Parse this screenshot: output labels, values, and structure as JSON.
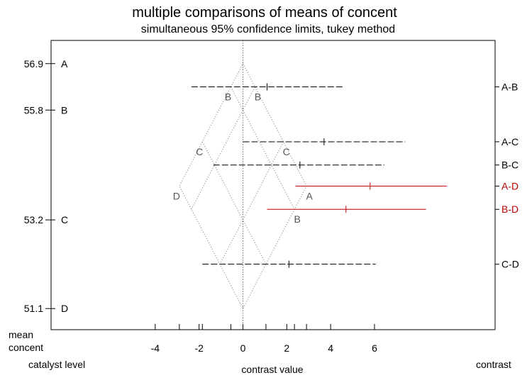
{
  "chart_data": {
    "type": "mean-mean-scatter",
    "title": "multiple comparisons of means of concent",
    "subtitle": "simultaneous 95% confidence limits, tukey method",
    "xlabel": "contrast value",
    "left_axis_title_1": "mean",
    "left_axis_title_2": "concent",
    "left_axis_label": "catalyst level",
    "right_axis_label": "contrast",
    "xlim": [
      -8.75,
      11.5
    ],
    "x_ticks": [
      -4,
      -2,
      0,
      2,
      4,
      6
    ],
    "x_tick_labels": [
      "-4",
      "-2",
      "0",
      "2",
      "4",
      "6"
    ],
    "ylim": [
      50.6,
      57.45
    ],
    "levels": [
      {
        "name": "A",
        "mean": 56.9,
        "mean_label": "56.9",
        "position": 56.9
      },
      {
        "name": "B",
        "mean": 55.8,
        "mean_label": "55.8",
        "position": 55.8
      },
      {
        "name": "C",
        "mean": 53.2,
        "mean_label": "53.2",
        "position": 53.2
      },
      {
        "name": "D",
        "mean": 51.1,
        "mean_label": "51.1",
        "position": 51.1
      }
    ],
    "contrasts": [
      {
        "name": "A-B",
        "estimate": 1.1,
        "lower": -2.35,
        "upper": 4.55,
        "significant": false
      },
      {
        "name": "A-C",
        "estimate": 3.7,
        "lower": 0.0,
        "upper": 7.4,
        "significant": false
      },
      {
        "name": "B-C",
        "estimate": 2.6,
        "lower": -1.35,
        "upper": 6.45,
        "significant": false
      },
      {
        "name": "A-D",
        "estimate": 5.8,
        "lower": 2.4,
        "upper": 9.3,
        "significant": true
      },
      {
        "name": "B-D",
        "estimate": 4.7,
        "lower": 1.1,
        "upper": 8.35,
        "significant": true
      },
      {
        "name": "C-D",
        "estimate": 2.1,
        "lower": -1.85,
        "upper": 6.05,
        "significant": false
      }
    ],
    "colors": {
      "significant": "#c00000",
      "not_significant": "#000000",
      "reference": "#808080"
    }
  }
}
